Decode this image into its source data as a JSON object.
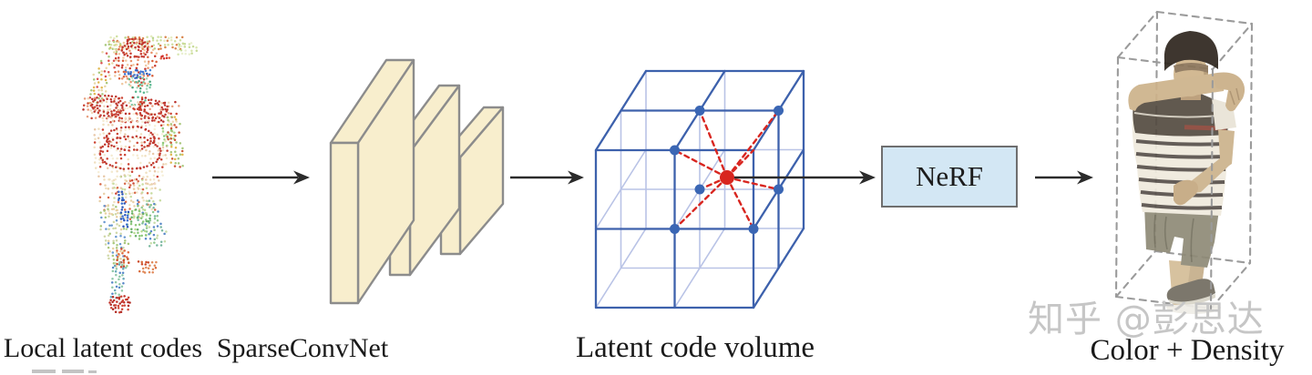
{
  "figure": {
    "stage_labels": [
      "Local latent codes",
      "SparseConvNet",
      "Latent code volume",
      "Color + Density"
    ],
    "nerf_label": "NeRF",
    "watermark": "知乎 @彭思达",
    "colors": {
      "cube_edge": "#3d61ac",
      "cube_hidden": "#b9c3e6",
      "query_red": "#d8251f",
      "lattice_dot_blue": "#3a66b4",
      "slab_fill": "#f8eecd",
      "slab_stroke": "#8c8c8c",
      "nerf_fill": "#d3e7f4",
      "nerf_stroke": "#6e6e6e",
      "arrow": "#2b2b2b",
      "bbox_dash": "#9b9b9b",
      "label_text": "#1a1a1a",
      "watermark_gray": "#c6c6c6"
    }
  }
}
